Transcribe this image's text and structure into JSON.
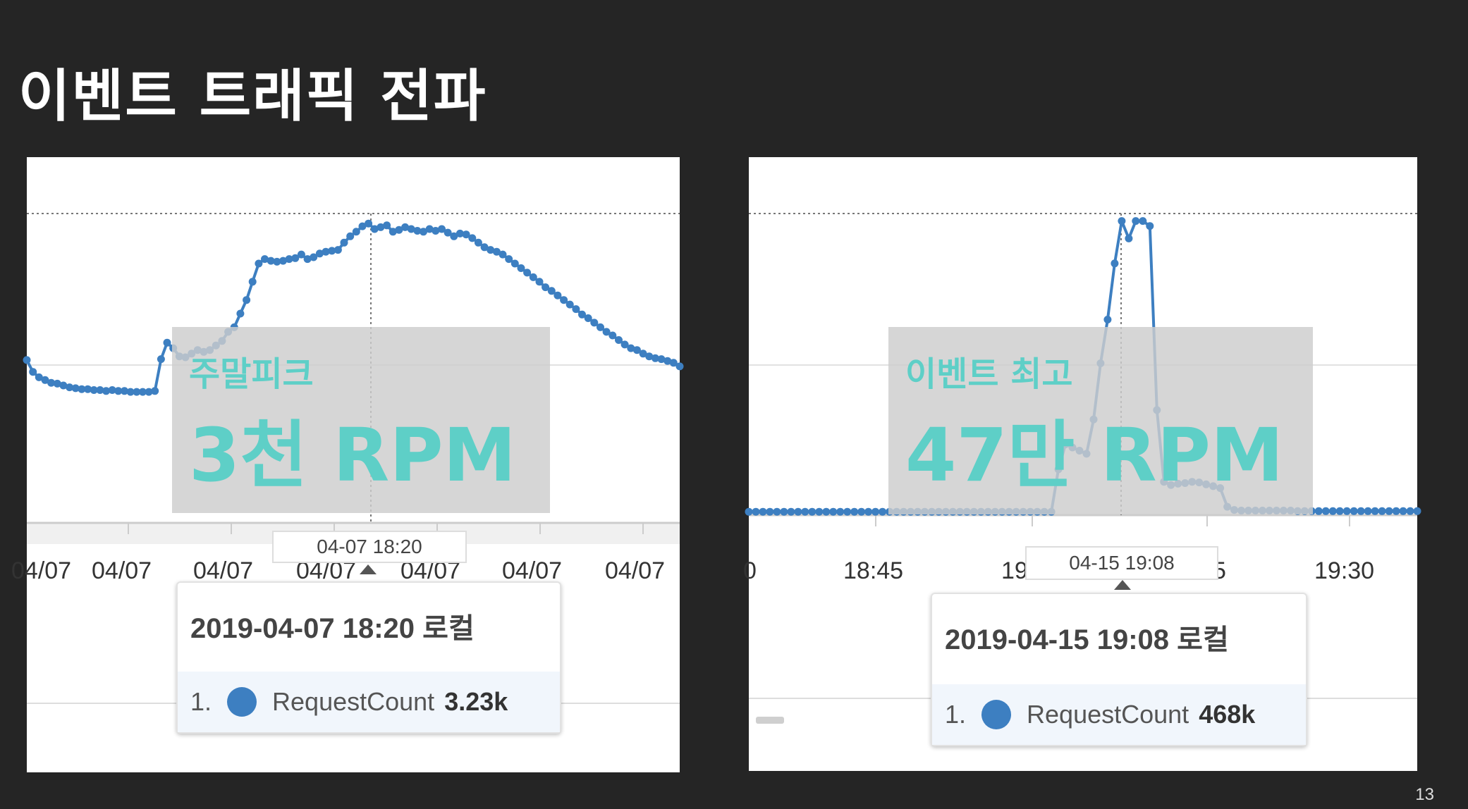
{
  "slide": {
    "title": "이벤트 트래픽 전파",
    "page_number": "13",
    "accent_color": "#5ecfc7",
    "series_color": "#3d7fc1"
  },
  "chart_data": [
    {
      "type": "line",
      "series": [
        {
          "name": "RequestCount",
          "values": [
            1790,
            1660,
            1600,
            1570,
            1540,
            1530,
            1510,
            1490,
            1480,
            1470,
            1470,
            1460,
            1460,
            1450,
            1460,
            1450,
            1450,
            1440,
            1440,
            1440,
            1440,
            1450,
            1800,
            1980,
            1920,
            1830,
            1820,
            1860,
            1900,
            1880,
            1900,
            1950,
            2000,
            2100,
            2150,
            2300,
            2450,
            2650,
            2850,
            2900,
            2880,
            2870,
            2880,
            2900,
            2910,
            2950,
            2900,
            2920,
            2960,
            2980,
            2990,
            3000,
            3080,
            3150,
            3200,
            3260,
            3290,
            3230,
            3250,
            3270,
            3200,
            3220,
            3250,
            3230,
            3210,
            3200,
            3230,
            3210,
            3230,
            3190,
            3150,
            3180,
            3170,
            3130,
            3080,
            3030,
            3000,
            2980,
            2950,
            2900,
            2850,
            2800,
            2750,
            2700,
            2650,
            2590,
            2550,
            2500,
            2450,
            2400,
            2350,
            2290,
            2250,
            2200,
            2150,
            2100,
            2060,
            2010,
            1960,
            1920,
            1900,
            1860,
            1830,
            1810,
            1800,
            1780,
            1760,
            1720
          ]
        }
      ],
      "ylim": [
        0,
        3400
      ],
      "x_tick_labels": [
        "04/07",
        "04/07",
        "04/07",
        "04/07",
        "04/07",
        "04/07",
        "04/07"
      ],
      "hover_label": "04-07 18:20",
      "tooltip": {
        "timestamp": "2019-04-07 18:20 로컬",
        "rank": "1.",
        "metric": "RequestCount",
        "value": "3.23k"
      },
      "annotation": {
        "subtitle": "주말피크",
        "headline": "3천 RPM"
      }
    },
    {
      "type": "line",
      "series": [
        {
          "name": "RequestCount",
          "values": [
            2,
            2,
            2,
            2,
            2,
            2,
            2,
            2,
            2,
            2,
            2,
            2,
            2,
            2,
            2,
            2,
            2,
            2,
            2,
            2,
            2,
            2,
            2,
            2,
            2,
            2,
            2,
            2,
            2,
            2,
            2,
            2,
            2,
            2,
            2,
            2,
            2,
            2,
            2,
            2,
            2,
            2,
            2,
            2,
            70,
            110,
            105,
            100,
            95,
            150,
            240,
            310,
            400,
            468,
            440,
            468,
            468,
            460,
            165,
            50,
            45,
            47,
            48,
            50,
            49,
            46,
            43,
            40,
            10,
            5,
            4,
            4,
            4,
            4,
            4,
            4,
            4,
            4,
            3,
            3,
            3,
            3,
            3,
            3,
            3,
            3,
            3,
            3,
            3,
            3,
            3,
            3,
            3,
            3,
            3,
            3
          ]
        }
      ],
      "ylim": [
        0,
        480
      ],
      "x_tick_labels": [
        "0",
        "18:45",
        "19",
        "5",
        "19:30"
      ],
      "hover_label": "04-15 19:08",
      "tooltip": {
        "timestamp": "2019-04-15 19:08 로컬",
        "rank": "1.",
        "metric": "RequestCount",
        "value": "468k"
      },
      "annotation": {
        "subtitle": "이벤트 최고",
        "headline": "47만 RPM"
      }
    }
  ]
}
